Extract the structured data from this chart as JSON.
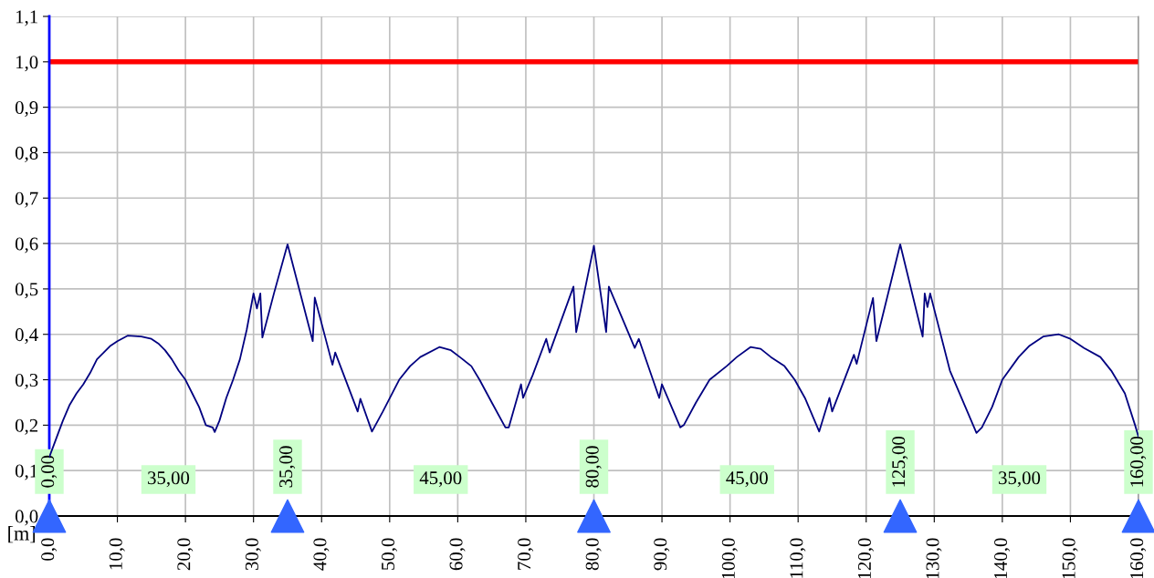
{
  "chart_data": {
    "type": "line",
    "xlabel": "[m]",
    "xlim": [
      0,
      160
    ],
    "ylim": [
      0,
      1.1
    ],
    "xticks": [
      {
        "value": 0,
        "label": "0,0"
      },
      {
        "value": 10,
        "label": "10,0"
      },
      {
        "value": 20,
        "label": "20,0"
      },
      {
        "value": 30,
        "label": "30,0"
      },
      {
        "value": 40,
        "label": "40,0"
      },
      {
        "value": 50,
        "label": "50,0"
      },
      {
        "value": 60,
        "label": "60,0"
      },
      {
        "value": 70,
        "label": "70,0"
      },
      {
        "value": 80,
        "label": "80,0"
      },
      {
        "value": 90,
        "label": "90,0"
      },
      {
        "value": 100,
        "label": "100,0"
      },
      {
        "value": 110,
        "label": "110,0"
      },
      {
        "value": 120,
        "label": "120,0"
      },
      {
        "value": 130,
        "label": "130,0"
      },
      {
        "value": 140,
        "label": "140,0"
      },
      {
        "value": 150,
        "label": "150,0"
      },
      {
        "value": 160,
        "label": "160,0"
      }
    ],
    "yticks": [
      {
        "value": 0,
        "label": "0,0"
      },
      {
        "value": 0.1,
        "label": "0,1"
      },
      {
        "value": 0.2,
        "label": "0,2"
      },
      {
        "value": 0.3,
        "label": "0,3"
      },
      {
        "value": 0.4,
        "label": "0,4"
      },
      {
        "value": 0.5,
        "label": "0,5"
      },
      {
        "value": 0.6,
        "label": "0,6"
      },
      {
        "value": 0.7,
        "label": "0,7"
      },
      {
        "value": 0.8,
        "label": "0,8"
      },
      {
        "value": 0.9,
        "label": "0,9"
      },
      {
        "value": 1.0,
        "label": "1,0"
      },
      {
        "value": 1.1,
        "label": "1,1"
      }
    ],
    "grid": true,
    "series": [
      {
        "color": "#000080",
        "x": [
          0,
          1,
          2,
          3,
          4,
          5,
          6,
          7,
          8,
          9,
          10,
          11.5,
          13.5,
          15,
          16,
          17,
          18,
          19,
          20,
          21,
          22,
          23,
          24,
          24.3,
          25,
          26,
          27,
          28,
          29,
          30,
          30.5,
          31,
          31.3,
          33,
          35,
          38.7,
          39,
          41.6,
          42,
          45.3,
          45.7,
          47.4,
          49,
          51.4,
          53,
          54.5,
          57.3,
          59,
          60.3,
          62,
          63.2,
          65,
          67,
          67.5,
          69.3,
          69.6,
          71,
          73,
          73.5,
          77,
          77.4,
          80,
          81.8,
          82.2,
          86,
          86.6,
          89.6,
          90,
          92.7,
          93.2,
          95,
          97,
          99.5,
          101,
          103,
          104.5,
          106,
          108,
          109.5,
          111,
          113.1,
          114.6,
          115,
          118.2,
          118.6,
          121,
          121.5,
          125,
          128.3,
          128.6,
          129,
          129.4,
          132.3,
          134,
          136.2,
          137,
          138.5,
          140,
          142.4,
          144,
          146,
          148.3,
          150,
          152,
          154.4,
          156,
          158,
          159.5,
          160
        ],
        "values": [
          0.13,
          0.17,
          0.21,
          0.245,
          0.27,
          0.29,
          0.315,
          0.345,
          0.36,
          0.375,
          0.385,
          0.397,
          0.395,
          0.39,
          0.38,
          0.365,
          0.345,
          0.32,
          0.3,
          0.27,
          0.24,
          0.2,
          0.195,
          0.185,
          0.21,
          0.26,
          0.3,
          0.345,
          0.41,
          0.49,
          0.457,
          0.49,
          0.393,
          0.49,
          0.598,
          0.385,
          0.481,
          0.333,
          0.36,
          0.23,
          0.258,
          0.186,
          0.23,
          0.3,
          0.33,
          0.35,
          0.372,
          0.365,
          0.35,
          0.33,
          0.3,
          0.25,
          0.195,
          0.195,
          0.29,
          0.26,
          0.31,
          0.39,
          0.36,
          0.505,
          0.405,
          0.595,
          0.405,
          0.505,
          0.37,
          0.39,
          0.26,
          0.29,
          0.195,
          0.2,
          0.25,
          0.3,
          0.33,
          0.35,
          0.372,
          0.368,
          0.35,
          0.33,
          0.3,
          0.26,
          0.186,
          0.26,
          0.23,
          0.355,
          0.335,
          0.48,
          0.385,
          0.598,
          0.395,
          0.49,
          0.46,
          0.49,
          0.32,
          0.26,
          0.183,
          0.195,
          0.24,
          0.3,
          0.35,
          0.375,
          0.395,
          0.4,
          0.39,
          0.37,
          0.35,
          0.32,
          0.27,
          0.2,
          0.175
        ]
      },
      {
        "type": "scatter",
        "marker": "triangle",
        "color": "#3366ff",
        "x": [
          0,
          35,
          80,
          125,
          160
        ],
        "values": [
          0,
          0,
          0,
          0,
          0
        ]
      }
    ],
    "ref_lines": [
      {
        "axis": "y",
        "value": 1.0,
        "color": "#ff0000"
      }
    ],
    "annotations": [
      "0,00",
      "35,00",
      "35,00",
      "45,00",
      "80,00",
      "45,00",
      "125,00",
      "35,00",
      "160,00"
    ]
  }
}
